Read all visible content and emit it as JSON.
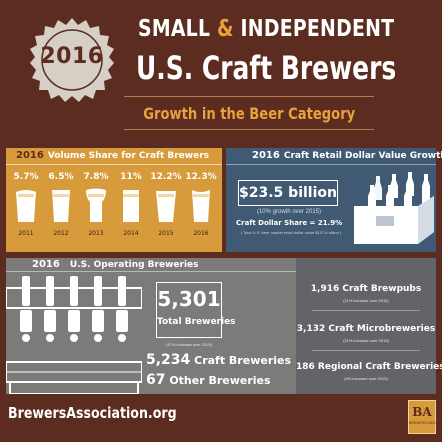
{
  "header": {
    "year": "2016",
    "title_line1_a": "SMALL ",
    "title_line1_amp": "&",
    "title_line1_b": " INDEPENDENT",
    "title_line2": "U.S. Craft Brewers",
    "subtitle": "Growth in the Beer Category"
  },
  "volume_share": {
    "year": "2016",
    "heading": "Volume Share for Craft Brewers",
    "items": [
      {
        "year": "2011",
        "share": "5.7%"
      },
      {
        "year": "2012",
        "share": "6.5%"
      },
      {
        "year": "2013",
        "share": "7.8%"
      },
      {
        "year": "2014",
        "share": "11%"
      },
      {
        "year": "2015",
        "share": "12.2%"
      },
      {
        "year": "2016",
        "share": "12.3%"
      }
    ]
  },
  "retail": {
    "year": "2016",
    "heading": "Craft Retail Dollar Value Growth",
    "value": "$23.5 billion",
    "growth": "(10% growth over 2015)",
    "share": "Craft Dollar Share = 21.9%",
    "note": "( Total U.S. beer market retail dollar value $107.6 billion )"
  },
  "breweries": {
    "year": "2016",
    "heading": "U.S. Operating Breweries",
    "total": "5,301",
    "total_label": "Total Breweries",
    "total_growth": "(17% increase over 2015)",
    "craft_num": "5,234",
    "craft_label": " Craft Breweries",
    "other_num": "67",
    "other_label": " Other Breweries",
    "stats": [
      {
        "num": "1,916",
        "label": " Craft Brewpubs",
        "sub": "(11% increase over 2015)"
      },
      {
        "num": "3,132",
        "label": " Craft Microbreweries",
        "sub": "(21% increase over 2015)"
      },
      {
        "num": "186",
        "label": " Regional Craft Breweries",
        "sub": "(4% increase over 2015)"
      }
    ]
  },
  "footer": {
    "url": "BrewersAssociation.org",
    "logo_letters": "BA",
    "logo_word": "BREWERS ASSOCIATION"
  },
  "colors": {
    "background": "#5b2c1f",
    "accent_orange": "#e8a23a",
    "volume_panel": "#d79b3c",
    "retail_panel": "#3f5a72",
    "brewery_panel": "#7c7b7a"
  }
}
